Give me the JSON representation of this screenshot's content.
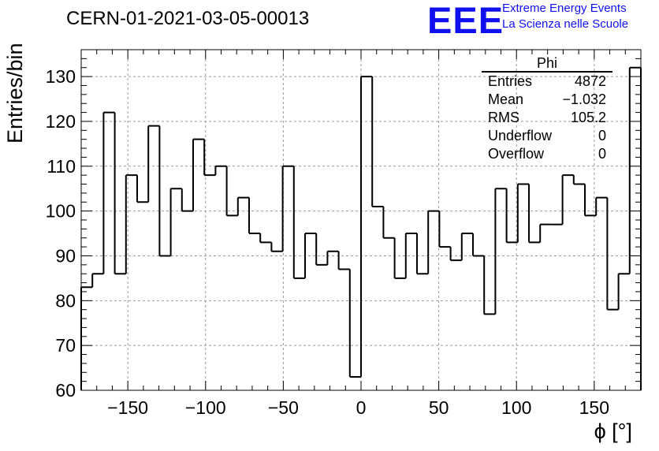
{
  "header": {
    "title": "CERN-01-2021-03-05-00013",
    "logo_text": "EEE",
    "logo_line1": "Extreme Energy Events",
    "logo_line2": "La Scienza nelle Scuole"
  },
  "stats": {
    "title": "Phi",
    "rows": [
      {
        "label": "Entries",
        "value": "4872"
      },
      {
        "label": "Mean",
        "value": "−1.032"
      },
      {
        "label": "RMS",
        "value": "105.2"
      },
      {
        "label": "Underflow",
        "value": "0"
      },
      {
        "label": "Overflow",
        "value": "0"
      }
    ]
  },
  "colors": {
    "line": "#000000",
    "grid": "#999999",
    "logo": "#1010ee"
  },
  "chart_data": {
    "type": "histogram",
    "title": "CERN-01-2021-03-05-00013",
    "xlabel": "ϕ [°]",
    "ylabel": "Entries/bin",
    "xlim": [
      -180,
      180
    ],
    "ylim": [
      60,
      136
    ],
    "bin_width": 7.2,
    "x_ticks": [
      -150,
      -100,
      -50,
      0,
      50,
      100,
      150
    ],
    "x_tick_labels": [
      "−150",
      "−100",
      "−50",
      "0",
      "50",
      "100",
      "150"
    ],
    "y_ticks": [
      60,
      70,
      80,
      90,
      100,
      110,
      120,
      130
    ],
    "y_tick_labels": [
      "60",
      "70",
      "80",
      "90",
      "100",
      "110",
      "120",
      "130"
    ],
    "grid": true,
    "legend": "none",
    "values": [
      83,
      86,
      122,
      86,
      108,
      102,
      119,
      90,
      105,
      100,
      116,
      108,
      110,
      99,
      103,
      95,
      93,
      91,
      110,
      85,
      95,
      88,
      91,
      87,
      63,
      130,
      101,
      94,
      85,
      95,
      86,
      100,
      92,
      89,
      95,
      90,
      77,
      105,
      93,
      106,
      93,
      97,
      97,
      108,
      106,
      99,
      103,
      78,
      86,
      132
    ]
  }
}
